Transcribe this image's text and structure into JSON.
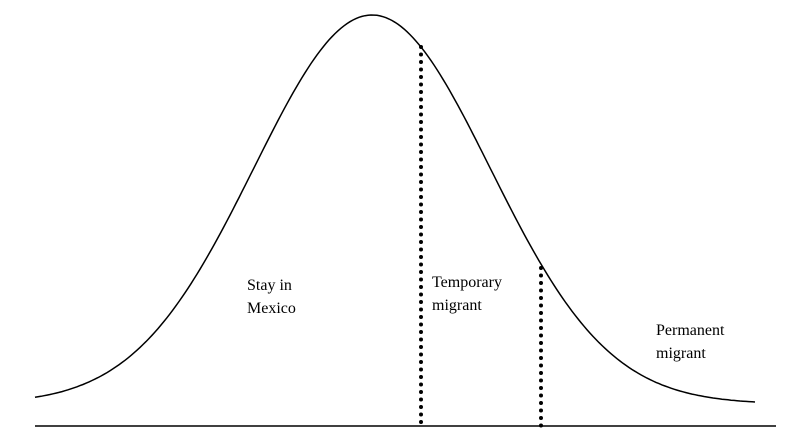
{
  "regions": [
    {
      "lines": [
        "Stay in",
        "Mexico"
      ]
    },
    {
      "lines": [
        "Temporary",
        "migrant"
      ]
    },
    {
      "lines": [
        "Permanent",
        "migrant"
      ]
    }
  ]
}
